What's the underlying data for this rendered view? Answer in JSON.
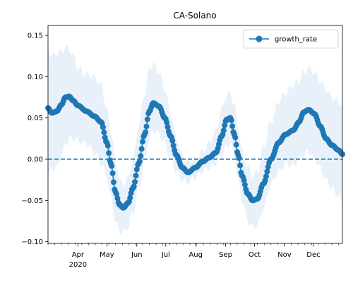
{
  "chart_data": {
    "type": "line",
    "title": "CA-Solano",
    "xlabel": "",
    "ylabel": "",
    "ylim": [
      -0.102,
      0.162
    ],
    "xlim": [
      "2020-03-01",
      "2020-12-31"
    ],
    "y_ticks": [
      -0.1,
      -0.05,
      0.0,
      0.05,
      0.1,
      0.15
    ],
    "y_tick_labels": [
      "−0.10",
      "−0.05",
      "0.00",
      "0.05",
      "0.10",
      "0.15"
    ],
    "x_ticks": [
      {
        "date": "2020-04-01",
        "label": "Apr"
      },
      {
        "date": "2020-05-01",
        "label": "May"
      },
      {
        "date": "2020-06-01",
        "label": "Jun"
      },
      {
        "date": "2020-07-01",
        "label": "Jul"
      },
      {
        "date": "2020-08-01",
        "label": "Aug"
      },
      {
        "date": "2020-09-01",
        "label": "Sep"
      },
      {
        "date": "2020-10-01",
        "label": "Oct"
      },
      {
        "date": "2020-11-01",
        "label": "Nov"
      },
      {
        "date": "2020-12-01",
        "label": "Dec"
      }
    ],
    "year_label": "2020",
    "legend_position": "upper right",
    "grid": false,
    "reference_line": {
      "y": 0.0,
      "style": "dashed"
    },
    "series": [
      {
        "name": "growth_rate",
        "color": "#1f77b4",
        "band_color": "#d6e6f4",
        "keypoints": [
          [
            "2020-03-01",
            0.062,
            0.135,
            -0.02
          ],
          [
            "2020-03-05",
            0.056,
            0.125,
            -0.012
          ],
          [
            "2020-03-10",
            0.058,
            0.128,
            -0.01
          ],
          [
            "2020-03-15",
            0.066,
            0.13,
            0.005
          ],
          [
            "2020-03-19",
            0.075,
            0.136,
            0.018
          ],
          [
            "2020-03-23",
            0.076,
            0.133,
            0.025
          ],
          [
            "2020-03-27",
            0.071,
            0.126,
            0.025
          ],
          [
            "2020-04-01",
            0.065,
            0.11,
            0.022
          ],
          [
            "2020-04-10",
            0.058,
            0.103,
            0.018
          ],
          [
            "2020-04-18",
            0.052,
            0.1,
            0.008
          ],
          [
            "2020-04-25",
            0.045,
            0.09,
            -0.005
          ],
          [
            "2020-05-01",
            0.02,
            0.06,
            -0.02
          ],
          [
            "2020-05-05",
            -0.005,
            0.035,
            -0.045
          ],
          [
            "2020-05-10",
            -0.04,
            0.0,
            -0.075
          ],
          [
            "2020-05-14",
            -0.055,
            -0.025,
            -0.087
          ],
          [
            "2020-05-18",
            -0.059,
            -0.03,
            -0.088
          ],
          [
            "2020-05-23",
            -0.053,
            -0.022,
            -0.082
          ],
          [
            "2020-05-28",
            -0.035,
            0.0,
            -0.065
          ],
          [
            "2020-06-03",
            -0.005,
            0.04,
            -0.035
          ],
          [
            "2020-06-09",
            0.03,
            0.08,
            0.0
          ],
          [
            "2020-06-14",
            0.058,
            0.11,
            0.025
          ],
          [
            "2020-06-18",
            0.068,
            0.115,
            0.035
          ],
          [
            "2020-06-24",
            0.064,
            0.105,
            0.03
          ],
          [
            "2020-06-30",
            0.05,
            0.085,
            0.02
          ],
          [
            "2020-07-06",
            0.028,
            0.055,
            0.0
          ],
          [
            "2020-07-12",
            0.005,
            0.025,
            -0.015
          ],
          [
            "2020-07-18",
            -0.01,
            0.005,
            -0.025
          ],
          [
            "2020-07-24",
            -0.016,
            -0.003,
            -0.028
          ],
          [
            "2020-08-01",
            -0.01,
            0.0,
            -0.022
          ],
          [
            "2020-08-08",
            -0.003,
            0.01,
            -0.015
          ],
          [
            "2020-08-15",
            0.002,
            0.02,
            -0.01
          ],
          [
            "2020-08-22",
            0.008,
            0.035,
            -0.005
          ],
          [
            "2020-08-28",
            0.028,
            0.06,
            0.005
          ],
          [
            "2020-09-02",
            0.048,
            0.078,
            0.015
          ],
          [
            "2020-09-06",
            0.05,
            0.08,
            0.02
          ],
          [
            "2020-09-10",
            0.03,
            0.065,
            0.005
          ],
          [
            "2020-09-14",
            0.005,
            0.04,
            -0.025
          ],
          [
            "2020-09-18",
            -0.02,
            0.01,
            -0.05
          ],
          [
            "2020-09-24",
            -0.042,
            -0.01,
            -0.075
          ],
          [
            "2020-09-29",
            -0.05,
            -0.02,
            -0.083
          ],
          [
            "2020-10-04",
            -0.048,
            -0.015,
            -0.08
          ],
          [
            "2020-10-10",
            -0.03,
            0.015,
            -0.06
          ],
          [
            "2020-10-18",
            0.0,
            0.045,
            -0.03
          ],
          [
            "2020-10-26",
            0.02,
            0.07,
            -0.015
          ],
          [
            "2020-11-02",
            0.03,
            0.08,
            -0.005
          ],
          [
            "2020-11-10",
            0.035,
            0.09,
            -0.008
          ],
          [
            "2020-11-16",
            0.045,
            0.095,
            0.0
          ],
          [
            "2020-11-21",
            0.057,
            0.105,
            0.005
          ],
          [
            "2020-11-26",
            0.06,
            0.11,
            0.01
          ],
          [
            "2020-12-02",
            0.055,
            0.105,
            0.0
          ],
          [
            "2020-12-08",
            0.04,
            0.095,
            -0.01
          ],
          [
            "2020-12-14",
            0.025,
            0.085,
            -0.025
          ],
          [
            "2020-12-20",
            0.017,
            0.075,
            -0.035
          ],
          [
            "2020-12-27",
            0.011,
            0.07,
            -0.045
          ],
          [
            "2020-12-31",
            0.006,
            0.065,
            -0.055
          ]
        ],
        "keypoint_fields": [
          "date",
          "value",
          "upper",
          "lower"
        ]
      }
    ]
  }
}
